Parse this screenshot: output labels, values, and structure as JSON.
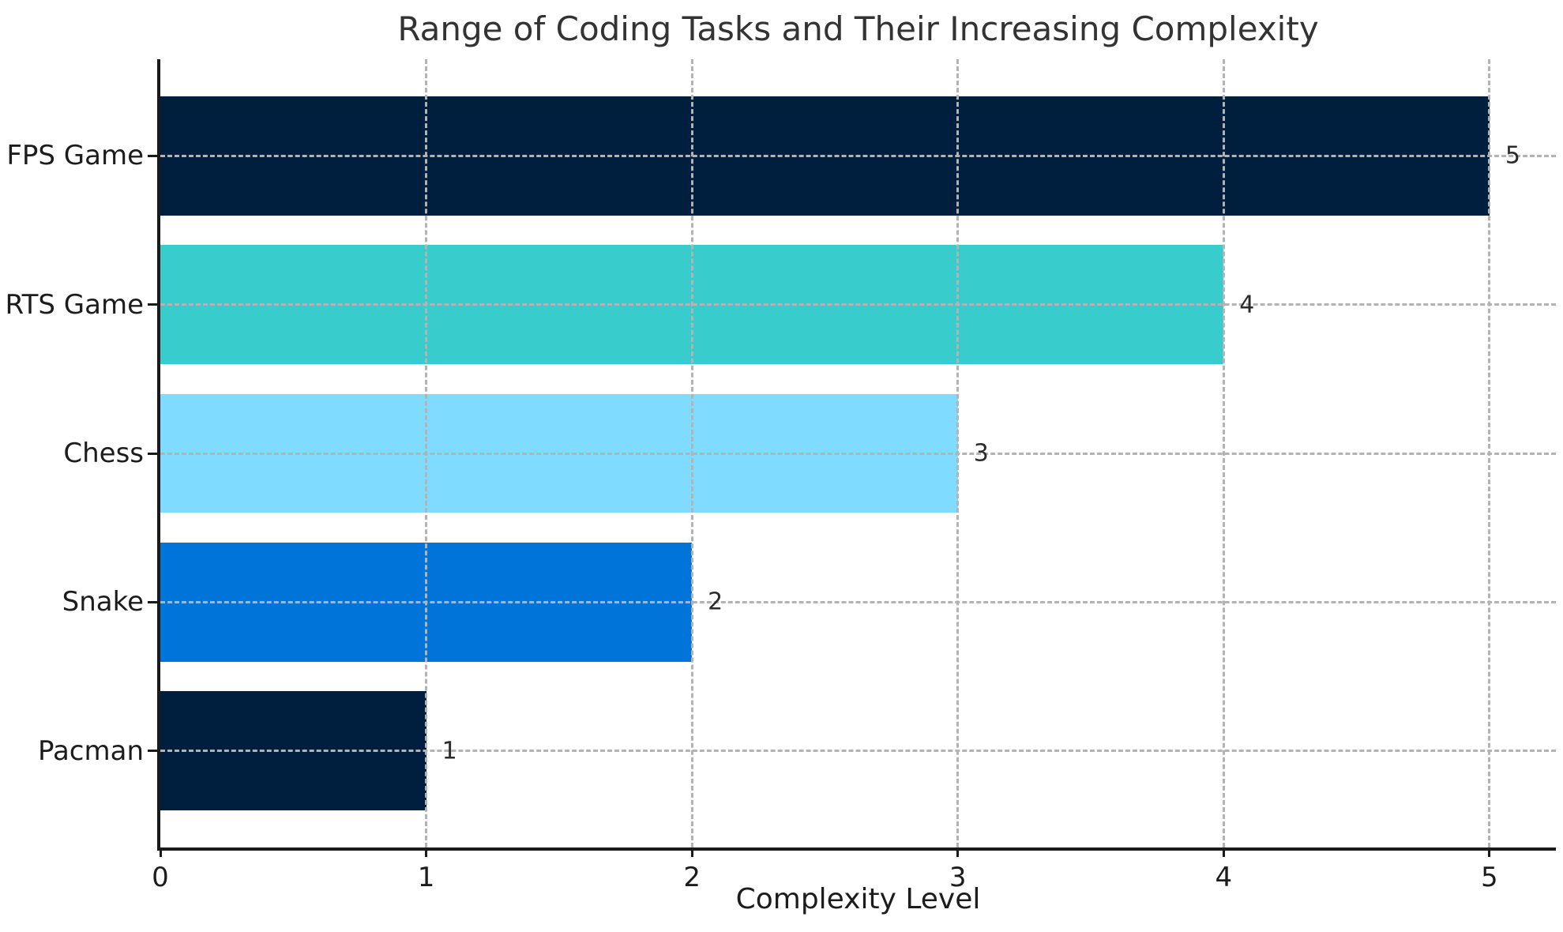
{
  "chart_data": {
    "type": "bar",
    "orientation": "horizontal",
    "title": "Range of Coding Tasks and Their Increasing Complexity",
    "xlabel": "Complexity Level",
    "ylabel": "",
    "categories": [
      "FPS Game",
      "RTS Game",
      "Chess",
      "Snake",
      "Pacman"
    ],
    "values": [
      5,
      4,
      3,
      2,
      1
    ],
    "value_labels": [
      "5",
      "4",
      "3",
      "2",
      "1"
    ],
    "bar_colors": [
      "#001f3f",
      "#39CCCC",
      "#7FDBFF",
      "#0074D9",
      "#001f3f"
    ],
    "xticks": [
      0,
      1,
      2,
      3,
      4,
      5
    ],
    "xtick_labels": [
      "0",
      "1",
      "2",
      "3",
      "4",
      "5"
    ],
    "xlim": [
      0,
      5.25
    ],
    "row_edge_padding_units": 0.65,
    "bar_height_fraction": 0.8,
    "grid": {
      "style": "dashed",
      "color": "#b3b3b3",
      "on_top": true,
      "vertical": true,
      "horizontal": true
    },
    "legend": null,
    "colors": {
      "background": "#ffffff",
      "axis_spine": "#1a1a1a",
      "title_text": "#333333",
      "tick_label_text": "#1c1c1c",
      "value_label_text": "#2b2b2b"
    }
  }
}
